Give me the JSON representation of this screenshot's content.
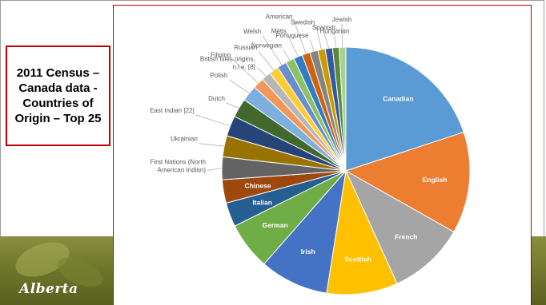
{
  "slide": {
    "title": "2011 Census – Canada data - Countries of Origin – Top 25",
    "logo_text": "Alberta"
  },
  "colors": {
    "title_border": "#c00000",
    "chart_border": "#c00000",
    "banner": "#6f7a2c"
  },
  "chart_data": {
    "type": "pie",
    "title": "",
    "legend": "none",
    "data_labels": "category names",
    "slices": [
      {
        "label": "Canadian",
        "value": 20.9,
        "color": "#5b9bd5",
        "label_pos": "inside"
      },
      {
        "label": "English",
        "value": 13.9,
        "color": "#ed7d31",
        "label_pos": "inside"
      },
      {
        "label": "French",
        "value": 10.5,
        "color": "#a5a5a5",
        "label_pos": "inside"
      },
      {
        "label": "Scottish",
        "value": 9.7,
        "color": "#ffc000",
        "label_pos": "inside"
      },
      {
        "label": "Irish",
        "value": 9.4,
        "color": "#4472c4",
        "label_pos": "inside"
      },
      {
        "label": "German",
        "value": 6.5,
        "color": "#70ad47",
        "label_pos": "inside"
      },
      {
        "label": "Italian",
        "value": 3.3,
        "color": "#255e91",
        "label_pos": "inside"
      },
      {
        "label": "Chinese",
        "value": 3.2,
        "color": "#9e480e",
        "label_pos": "inside"
      },
      {
        "label": "First Nations (North American Indian)",
        "value": 3.1,
        "color": "#636363",
        "label_pos": "outside"
      },
      {
        "label": "Ukrainian",
        "value": 2.9,
        "color": "#997300",
        "label_pos": "outside"
      },
      {
        "label": "East Indian [22]",
        "value": 2.8,
        "color": "#264478",
        "label_pos": "outside"
      },
      {
        "label": "Dutch",
        "value": 2.6,
        "color": "#43682b",
        "label_pos": "outside"
      },
      {
        "label": "Polish",
        "value": 2.2,
        "color": "#7cafdd",
        "label_pos": "outside"
      },
      {
        "label": "Filipino",
        "value": 1.5,
        "color": "#f1975a",
        "label_pos": "outside"
      },
      {
        "label": "British Isles origins, n.i.e. [8]",
        "value": 1.3,
        "color": "#b7b7b7",
        "label_pos": "outside"
      },
      {
        "label": "Russian",
        "value": 1.3,
        "color": "#ffcd33",
        "label_pos": "outside"
      },
      {
        "label": "Welsh",
        "value": 1.3,
        "color": "#698ed0",
        "label_pos": "outside"
      },
      {
        "label": "Norwegian",
        "value": 1.2,
        "color": "#8cc168",
        "label_pos": "outside"
      },
      {
        "label": "Métis",
        "value": 1.2,
        "color": "#327dc2",
        "label_pos": "outside"
      },
      {
        "label": "American",
        "value": 1.1,
        "color": "#d26012",
        "label_pos": "outside"
      },
      {
        "label": "Portuguese",
        "value": 1.1,
        "color": "#848484",
        "label_pos": "outside"
      },
      {
        "label": "Swedish",
        "value": 1.0,
        "color": "#cc9a00",
        "label_pos": "outside"
      },
      {
        "label": "Spanish",
        "value": 1.0,
        "color": "#335aa1",
        "label_pos": "outside"
      },
      {
        "label": "Hungarian",
        "value": 0.9,
        "color": "#5a8a39",
        "label_pos": "outside"
      },
      {
        "label": "Jewish",
        "value": 0.9,
        "color": "#a9d18e",
        "label_pos": "outside"
      }
    ]
  }
}
